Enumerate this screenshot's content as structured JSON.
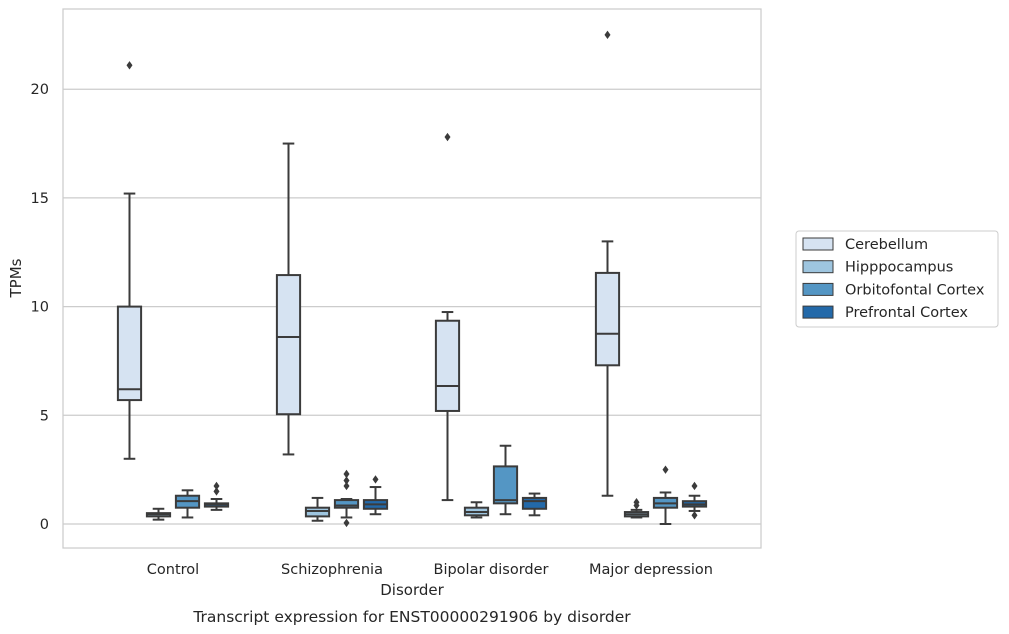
{
  "chart_data": {
    "type": "box",
    "title": "",
    "caption": "Transcript expression for ENST00000291906 by disorder",
    "xlabel": "Disorder",
    "ylabel": "TPMs",
    "ylim": [
      -1.1,
      23.7
    ],
    "yticks": [
      0,
      5,
      10,
      15,
      20
    ],
    "grid": "horizontal",
    "legend_position": "right",
    "categories": [
      "Control",
      "Schizophrenia",
      "Bipolar disorder",
      "Major depression"
    ],
    "series": [
      {
        "name": "Cerebellum",
        "color": "#d6e3f2",
        "boxes": [
          {
            "whisker_low": 3.0,
            "q1": 5.7,
            "median": 6.2,
            "q3": 10.0,
            "whisker_high": 15.2,
            "outliers": [
              21.1
            ]
          },
          {
            "whisker_low": 3.2,
            "q1": 5.05,
            "median": 8.6,
            "q3": 11.45,
            "whisker_high": 17.5,
            "outliers": []
          },
          {
            "whisker_low": 1.1,
            "q1": 5.2,
            "median": 6.35,
            "q3": 9.35,
            "whisker_high": 9.75,
            "outliers": [
              17.8
            ]
          },
          {
            "whisker_low": 1.3,
            "q1": 7.3,
            "median": 8.75,
            "q3": 11.55,
            "whisker_high": 13.0,
            "outliers": [
              22.5
            ]
          }
        ]
      },
      {
        "name": "Hipppocampus",
        "color": "#9ec5df",
        "boxes": [
          {
            "whisker_low": 0.2,
            "q1": 0.35,
            "median": 0.45,
            "q3": 0.5,
            "whisker_high": 0.7,
            "outliers": []
          },
          {
            "whisker_low": 0.15,
            "q1": 0.35,
            "median": 0.6,
            "q3": 0.75,
            "whisker_high": 1.2,
            "outliers": []
          },
          {
            "whisker_low": 0.3,
            "q1": 0.4,
            "median": 0.55,
            "q3": 0.75,
            "whisker_high": 1.0,
            "outliers": []
          },
          {
            "whisker_low": 0.3,
            "q1": 0.35,
            "median": 0.45,
            "q3": 0.55,
            "whisker_high": 0.65,
            "outliers": [
              0.85,
              1.0
            ]
          }
        ]
      },
      {
        "name": "Orbitofontal Cortex",
        "color": "#5496c4",
        "boxes": [
          {
            "whisker_low": 0.3,
            "q1": 0.75,
            "median": 1.05,
            "q3": 1.3,
            "whisker_high": 1.55,
            "outliers": []
          },
          {
            "whisker_low": 0.3,
            "q1": 0.75,
            "median": 0.85,
            "q3": 1.1,
            "whisker_high": 1.15,
            "outliers": [
              0.05,
              1.75,
              2.0,
              2.3
            ]
          },
          {
            "whisker_low": 0.45,
            "q1": 0.95,
            "median": 1.1,
            "q3": 2.65,
            "whisker_high": 3.6,
            "outliers": []
          },
          {
            "whisker_low": 0.0,
            "q1": 0.75,
            "median": 0.95,
            "q3": 1.2,
            "whisker_high": 1.45,
            "outliers": [
              2.5
            ]
          }
        ]
      },
      {
        "name": "Prefrontal Cortex",
        "color": "#2369a9",
        "boxes": [
          {
            "whisker_low": 0.65,
            "q1": 0.8,
            "median": 0.9,
            "q3": 0.95,
            "whisker_high": 1.15,
            "outliers": [
              1.5,
              1.75
            ]
          },
          {
            "whisker_low": 0.45,
            "q1": 0.7,
            "median": 0.9,
            "q3": 1.1,
            "whisker_high": 1.7,
            "outliers": [
              2.05
            ]
          },
          {
            "whisker_low": 0.4,
            "q1": 0.7,
            "median": 1.05,
            "q3": 1.2,
            "whisker_high": 1.4,
            "outliers": []
          },
          {
            "whisker_low": 0.6,
            "q1": 0.8,
            "median": 0.9,
            "q3": 1.05,
            "whisker_high": 1.3,
            "outliers": [
              0.4,
              1.75
            ]
          }
        ]
      }
    ]
  }
}
